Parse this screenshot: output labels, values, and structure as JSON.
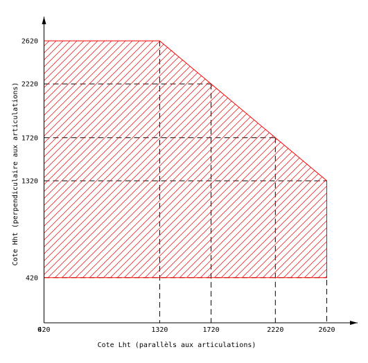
{
  "chart_data": {
    "type": "area",
    "title": "",
    "xlabel": "Cote Lht (parallèls aux articulations)",
    "ylabel": "Cote Hht (perpendiculaire aux articulations)",
    "origin_label": "0",
    "x_ticks": [
      420,
      1320,
      1720,
      2220,
      2620
    ],
    "y_ticks": [
      420,
      1320,
      1720,
      2220,
      2620
    ],
    "xlim": [
      0,
      2800
    ],
    "ylim": [
      0,
      2800
    ],
    "region": {
      "x": [
        420,
        1320,
        1720,
        2220,
        2620,
        2620,
        420
      ],
      "y": [
        2620,
        2620,
        2220,
        1720,
        1320,
        420,
        420
      ]
    },
    "region_color": "#ff0000",
    "line_color": "#000000",
    "grid": false
  }
}
